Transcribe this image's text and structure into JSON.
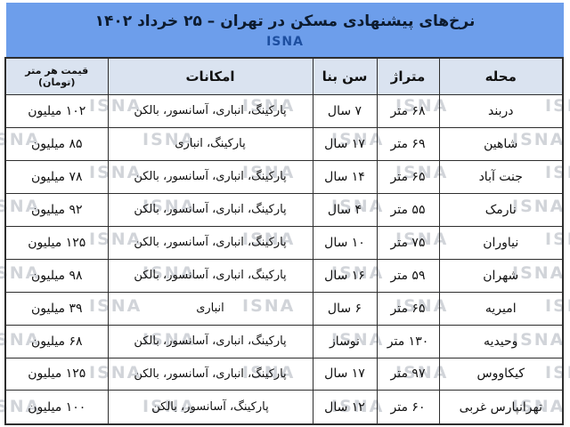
{
  "page": {
    "title": "نرخ‌های پیشنهادی مسکن در تهران – ۲۵ خرداد ۱۴۰۲",
    "agency": "ISNA",
    "watermark_text": "ISNA"
  },
  "colors": {
    "title_band": "#6d9eeb",
    "header_row": "#dae3f0",
    "agency_text": "#1d4fa0",
    "watermark": "#9ba1ac",
    "border": "#2e2e2e"
  },
  "chart_data": {
    "type": "table",
    "title": "نرخ‌های پیشنهادی مسکن در تهران – ۲۵ خرداد ۱۴۰۲",
    "source": "ISNA",
    "columns": [
      {
        "key": "neighborhood",
        "label": "محله"
      },
      {
        "key": "area",
        "label": "متراژ"
      },
      {
        "key": "age",
        "label": "سن بنا"
      },
      {
        "key": "amenities",
        "label": "امکانات"
      },
      {
        "key": "price",
        "label": "قیمت هر متر (تومان)"
      }
    ],
    "rows": [
      {
        "neighborhood": "دربند",
        "area": "۶۸ متر",
        "age": "۷ سال",
        "amenities": "پارکینگ، انباری، آسانسور، بالکن",
        "price": "۱۰۲ میلیون"
      },
      {
        "neighborhood": "شاهین",
        "area": "۶۹ متر",
        "age": "۱۷ سال",
        "amenities": "پارکینگ، انباری",
        "price": "۸۵ میلیون"
      },
      {
        "neighborhood": "جنت آباد",
        "area": "۶۵ متر",
        "age": "۱۴ سال",
        "amenities": "پارکینگ، انباری، آسانسور، بالکن",
        "price": "۷۸ میلیون"
      },
      {
        "neighborhood": "نارمک",
        "area": "۵۵ متر",
        "age": "۴ سال",
        "amenities": "پارکینگ، انباری، آسانسور، بالکن",
        "price": "۹۲ میلیون"
      },
      {
        "neighborhood": "نیاوران",
        "area": "۷۵ متر",
        "age": "۱۰ سال",
        "amenities": "پارکینگ، انباری، آسانسور، بالکن",
        "price": "۱۲۵ میلیون"
      },
      {
        "neighborhood": "شهران",
        "area": "۵۹ متر",
        "age": "۱۶ سال",
        "amenities": "پارکینگ، انباری، آسانسور، بالکن",
        "price": "۹۸ میلیون"
      },
      {
        "neighborhood": "امیریه",
        "area": "۶۵ متر",
        "age": "۶ سال",
        "amenities": "انباری",
        "price": "۳۹ میلیون"
      },
      {
        "neighborhood": "وحیدیه",
        "area": "۱۳۰ متر",
        "age": "نوساز",
        "amenities": "پارکینگ، انباری، آسانسور، بالکن",
        "price": "۶۸ میلیون"
      },
      {
        "neighborhood": "کیکاووس",
        "area": "۹۷ متر",
        "age": "۱۷ سال",
        "amenities": "پارکینگ، انباری، آسانسور، بالکن",
        "price": "۱۲۵ میلیون"
      },
      {
        "neighborhood": "تهرانپارس غربی",
        "area": "۶۰ متر",
        "age": "۱۲ سال",
        "amenities": "پارکینگ، آسانسور، بالکن",
        "price": "۱۰۰ میلیون"
      }
    ]
  }
}
